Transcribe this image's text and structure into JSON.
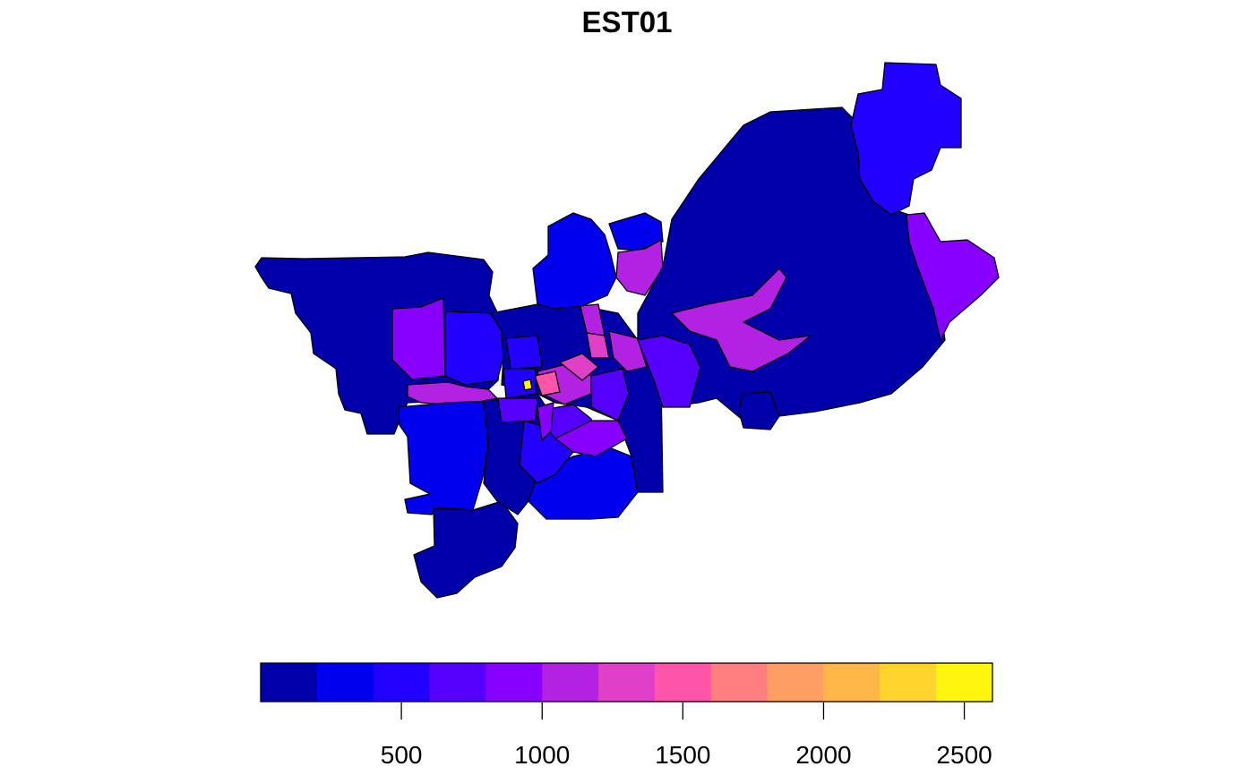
{
  "map": {
    "title": "EST01",
    "colors": {
      "c1": "#0000AA",
      "c2": "#0000EE",
      "c3": "#2200FF",
      "c4": "#5500FF",
      "c5": "#8800FF",
      "c6": "#B322E2",
      "c7": "#E040C8",
      "c8": "#FF55A8",
      "c9": "#FF7E80",
      "c10": "#FF9E64",
      "c11": "#FFB74A",
      "c12": "#FFD42C",
      "c13": "#FFF50E",
      "border": "#000000"
    }
  },
  "legend": {
    "type": "continuous-color-bar",
    "range": [
      0,
      2600
    ],
    "bin_width": 200,
    "colors": [
      "#0000AA",
      "#0000EE",
      "#2200FF",
      "#5500FF",
      "#8800FF",
      "#B322E2",
      "#E040C8",
      "#FF55A8",
      "#FF7E80",
      "#FF9E64",
      "#FFB74A",
      "#FFD42C",
      "#FFF50E"
    ],
    "ticks": [
      500,
      1000,
      1500,
      2000,
      2500
    ],
    "tick_labels": [
      "500",
      "1000",
      "1500",
      "2000",
      "2500"
    ]
  }
}
